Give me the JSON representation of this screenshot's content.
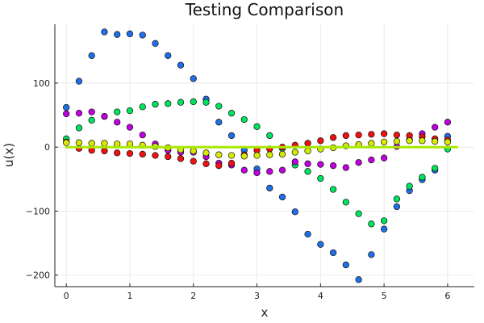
{
  "chart_data": {
    "type": "scatter",
    "title": "Testing Comparison",
    "xlabel": "x",
    "ylabel": "u(x)",
    "xlim": [
      -0.18,
      6.42
    ],
    "ylim": [
      -218,
      192
    ],
    "xticks": [
      0,
      1,
      2,
      3,
      4,
      5,
      6
    ],
    "yticks": [
      -200,
      -100,
      0,
      100
    ],
    "xtick_labels": [
      "0",
      "1",
      "2",
      "3",
      "4",
      "5",
      "6"
    ],
    "ytick_labels": [
      "−200",
      "−100",
      "0",
      "100"
    ],
    "grid": true,
    "legend": "none",
    "x": [
      0.0,
      0.2,
      0.4,
      0.6,
      0.8,
      1.0,
      1.2,
      1.4,
      1.6,
      1.8,
      2.0,
      2.2,
      2.4,
      2.6,
      2.8,
      3.0,
      3.2,
      3.4,
      3.6,
      3.8,
      4.0,
      4.2,
      4.4,
      4.6,
      4.8,
      5.0,
      5.2,
      5.4,
      5.6,
      5.8,
      6.0
    ],
    "series": [
      {
        "name": "blue",
        "color": "#1f6fe8",
        "values": [
          62,
          103,
          143,
          180,
          176,
          177,
          175,
          162,
          143,
          128,
          107,
          75,
          39,
          18,
          -5,
          -34,
          -64,
          -78,
          -101,
          -136,
          -152,
          -165,
          -184,
          -207,
          -168,
          -128,
          -93,
          -68,
          -51,
          -36,
          17
        ]
      },
      {
        "name": "green",
        "color": "#00e35f",
        "values": [
          13,
          30,
          42,
          48,
          55,
          57,
          63,
          67,
          68,
          70,
          71,
          70,
          64,
          53,
          43,
          32,
          18,
          -2,
          -28,
          -38,
          -49,
          -66,
          -86,
          -104,
          -120,
          -115,
          -81,
          -61,
          -47,
          -33,
          -3
        ]
      },
      {
        "name": "magenta",
        "color": "#c000e0",
        "values": [
          52,
          53,
          55,
          48,
          39,
          31,
          19,
          5,
          -5,
          -8,
          -8,
          -15,
          -25,
          -28,
          -36,
          -40,
          -38,
          -36,
          -23,
          -26,
          -27,
          -29,
          -32,
          -24,
          -20,
          -17,
          1,
          12,
          21,
          31,
          39
        ]
      },
      {
        "name": "red",
        "color": "#f01010",
        "values": [
          8,
          -2,
          -5,
          -6,
          -9,
          -10,
          -11,
          -13,
          -15,
          -18,
          -22,
          -26,
          -29,
          -25,
          -12,
          -5,
          -3,
          0,
          3,
          6,
          10,
          15,
          18,
          19,
          20,
          21,
          19,
          18,
          16,
          13,
          11
        ]
      },
      {
        "name": "yellow",
        "color": "#d6ea00",
        "values": [
          7,
          7,
          6,
          6,
          5,
          5,
          3,
          1,
          -1,
          -4,
          -6,
          -9,
          -12,
          -13,
          -14,
          -13,
          -12,
          -11,
          -8,
          -6,
          -3,
          -1,
          2,
          4,
          6,
          8,
          9,
          10,
          10,
          9,
          8
        ]
      }
    ],
    "reference_line": {
      "name": "zero",
      "color": "#a9e800",
      "x": [
        0,
        6.15
      ],
      "y": [
        0,
        0
      ]
    }
  }
}
